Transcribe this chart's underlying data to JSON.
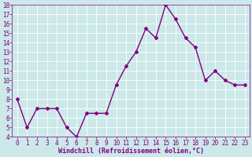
{
  "x": [
    0,
    1,
    2,
    3,
    4,
    5,
    6,
    7,
    8,
    9,
    10,
    11,
    12,
    13,
    14,
    15,
    16,
    17,
    18,
    19,
    20,
    21,
    22,
    23
  ],
  "y": [
    8.0,
    5.0,
    7.0,
    7.0,
    7.0,
    5.0,
    4.0,
    6.5,
    6.5,
    6.5,
    9.5,
    11.5,
    13.0,
    15.5,
    14.5,
    18.0,
    16.5,
    14.5,
    13.5,
    10.0,
    11.0,
    10.0,
    9.5,
    9.5
  ],
  "line_color": "#800080",
  "marker": "D",
  "marker_size": 2,
  "background_color": "#cce8e8",
  "grid_color": "#ffffff",
  "xlabel": "Windchill (Refroidissement éolien,°C)",
  "xlabel_fontsize": 6,
  "xlim": [
    -0.5,
    23.5
  ],
  "ylim": [
    4,
    18
  ],
  "yticks": [
    4,
    5,
    6,
    7,
    8,
    9,
    10,
    11,
    12,
    13,
    14,
    15,
    16,
    17,
    18
  ],
  "xticks": [
    0,
    1,
    2,
    3,
    4,
    5,
    6,
    7,
    8,
    9,
    10,
    11,
    12,
    13,
    14,
    15,
    16,
    17,
    18,
    19,
    20,
    21,
    22,
    23
  ],
  "tick_fontsize": 5.5,
  "line_width": 1.0
}
